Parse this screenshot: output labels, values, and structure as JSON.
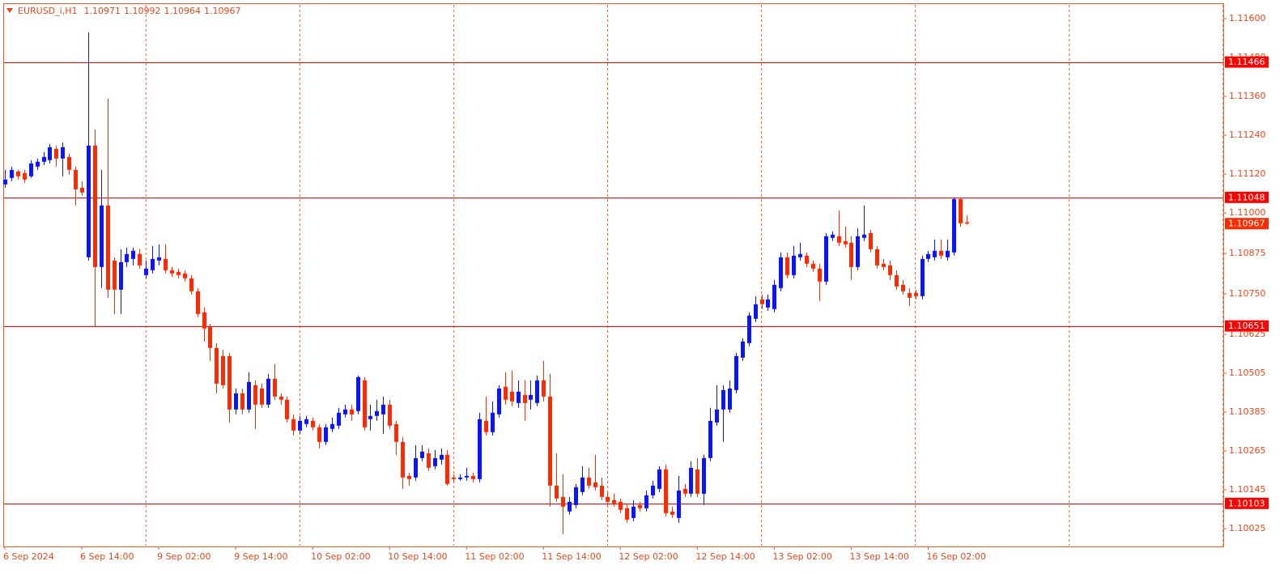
{
  "chart_data": {
    "type": "candlestick",
    "title": "EURUSD_i,H1",
    "categories": [
      "6 Sep 2024",
      null,
      null,
      null,
      null,
      null,
      null,
      null,
      null,
      null,
      null,
      null,
      "6 Sep 14:00",
      null,
      null,
      null,
      null,
      null,
      null,
      null,
      null,
      null,
      null,
      null,
      "9 Sep 02:00",
      null,
      null,
      null,
      null,
      null,
      null,
      null,
      null,
      null,
      null,
      null,
      "9 Sep 14:00",
      null,
      null,
      null,
      null,
      null,
      null,
      null,
      null,
      null,
      null,
      null,
      "10 Sep 02:00",
      null,
      null,
      null,
      null,
      null,
      null,
      null,
      null,
      null,
      null,
      null,
      "10 Sep 14:00",
      null,
      null,
      null,
      null,
      null,
      null,
      null,
      null,
      null,
      null,
      null,
      "11 Sep 02:00",
      null,
      null,
      null,
      null,
      null,
      null,
      null,
      null,
      null,
      null,
      null,
      "11 Sep 14:00",
      null,
      null,
      null,
      null,
      null,
      null,
      null,
      null,
      null,
      null,
      null,
      "12 Sep 02:00",
      null,
      null,
      null,
      null,
      null,
      null,
      null,
      null,
      null,
      null,
      null,
      "12 Sep 14:00",
      null,
      null,
      null,
      null,
      null,
      null,
      null,
      null,
      null,
      null,
      null,
      "13 Sep 02:00",
      null,
      null,
      null,
      null,
      null,
      null,
      null,
      null,
      null,
      null,
      null,
      "13 Sep 14:00",
      null,
      null,
      null,
      null,
      null,
      null,
      null,
      null,
      null,
      null,
      null,
      "16 Sep 02:00",
      null,
      null,
      null,
      null,
      null,
      null
    ],
    "open": [
      1.11088,
      1.11108,
      1.11128,
      1.11123,
      1.11113,
      1.11143,
      1.11158,
      1.11163,
      1.11198,
      1.11168,
      1.11173,
      1.11133,
      1.11078,
      1.10863,
      1.11208,
      1.10833,
      1.11023,
      1.10853,
      1.10763,
      1.10848,
      1.10858,
      1.10873,
      1.10808,
      1.10823,
      1.10853,
      1.10858,
      1.10823,
      1.10818,
      1.10813,
      1.10798,
      1.10758,
      1.10693,
      1.10648,
      1.10583,
      1.10558,
      1.10558,
      1.10393,
      1.10443,
      1.10393,
      1.10468,
      1.10458,
      1.10408,
      1.10488,
      1.10433,
      1.10423,
      1.10363,
      1.10328,
      1.10348,
      1.10358,
      1.10338,
      1.10293,
      1.10333,
      1.10343,
      1.10378,
      1.10393,
      1.10388,
      1.10483,
      1.10363,
      1.10373,
      1.10378,
      1.10408,
      1.10348,
      1.10293,
      1.10188,
      1.10183,
      1.10243,
      1.10258,
      1.10218,
      1.10238,
      1.10253,
      1.10183,
      1.10178,
      1.10183,
      1.10188,
      1.10178,
      1.10358,
      1.10323,
      1.10378,
      1.10463,
      1.10448,
      1.10413,
      1.10438,
      1.10423,
      1.10413,
      1.10483,
      1.10433,
      1.10158,
      1.10123,
      1.10078,
      1.10098,
      1.10138,
      1.10183,
      1.10168,
      1.10158,
      1.10123,
      1.10113,
      1.10108,
      1.10088,
      1.10058,
      1.10098,
      1.10088,
      1.10128,
      1.10148,
      1.10208,
      1.10078,
      1.10058,
      1.10148,
      1.10133,
      1.10208,
      1.10133,
      1.10243,
      1.10353,
      1.10393,
      1.10393,
      1.10453,
      1.10553,
      1.10598,
      1.10673,
      1.10733,
      1.10708,
      1.10703,
      1.10768,
      1.10863,
      1.10808,
      1.10863,
      1.10868,
      1.10843,
      1.10828,
      1.10788,
      1.10923,
      1.10928,
      1.10913,
      1.10908,
      1.10833,
      1.10923,
      1.10938,
      1.10888,
      1.10843,
      1.10838,
      1.10808,
      1.10778,
      1.10753,
      1.10753,
      1.10743,
      1.10858,
      1.10863,
      1.10883,
      1.10863,
      1.10878,
      1.11043,
      1.10971
    ],
    "high": [
      1.11133,
      1.11143,
      1.11133,
      1.11133,
      1.11163,
      1.11168,
      1.11188,
      1.11213,
      1.11208,
      1.11218,
      1.11183,
      1.11143,
      1.11098,
      1.11558,
      1.11258,
      1.11133,
      1.11353,
      1.10863,
      1.10888,
      1.10893,
      1.10893,
      1.10888,
      1.10853,
      1.10898,
      1.10903,
      1.10903,
      1.10833,
      1.10828,
      1.10823,
      1.10808,
      1.10768,
      1.10708,
      1.10658,
      1.10598,
      1.10578,
      1.10568,
      1.10458,
      1.10458,
      1.10508,
      1.10483,
      1.10473,
      1.10503,
      1.10533,
      1.10443,
      1.10433,
      1.10378,
      1.10373,
      1.10373,
      1.10368,
      1.10348,
      1.10348,
      1.10368,
      1.10398,
      1.10408,
      1.10408,
      1.10498,
      1.10493,
      1.10408,
      1.10423,
      1.10433,
      1.10423,
      1.10358,
      1.10308,
      1.10198,
      1.10283,
      1.10283,
      1.10273,
      1.10268,
      1.10273,
      1.10268,
      1.10193,
      1.10193,
      1.10213,
      1.10198,
      1.10383,
      1.10433,
      1.10418,
      1.10468,
      1.10508,
      1.10513,
      1.10483,
      1.10483,
      1.10483,
      1.10498,
      1.10543,
      1.10503,
      1.10258,
      1.10193,
      1.10123,
      1.10163,
      1.10218,
      1.10213,
      1.10253,
      1.10183,
      1.10138,
      1.10133,
      1.10118,
      1.10103,
      1.10113,
      1.10108,
      1.10143,
      1.10173,
      1.10218,
      1.10223,
      1.10093,
      1.10188,
      1.10163,
      1.10233,
      1.10243,
      1.10253,
      1.10398,
      1.10468,
      1.10468,
      1.10483,
      1.10568,
      1.10613,
      1.10693,
      1.10743,
      1.10748,
      1.10748,
      1.10793,
      1.10878,
      1.10878,
      1.10898,
      1.10908,
      1.10878,
      1.10853,
      1.10843,
      1.10938,
      1.10943,
      1.11008,
      1.10958,
      1.10928,
      1.10953,
      1.11023,
      1.10948,
      1.10898,
      1.10858,
      1.10853,
      1.10823,
      1.10793,
      1.10768,
      1.10763,
      1.10868,
      1.10883,
      1.10918,
      1.10918,
      1.10918,
      1.11048,
      1.11048,
      1.10992
    ],
    "low": [
      1.11078,
      1.11098,
      1.11103,
      1.11093,
      1.11108,
      1.11133,
      1.11148,
      1.11153,
      1.11143,
      1.11113,
      1.11118,
      1.11023,
      1.11053,
      1.10853,
      1.10648,
      1.10768,
      1.10738,
      1.10688,
      1.10688,
      1.10833,
      1.10838,
      1.10828,
      1.10798,
      1.10813,
      1.10838,
      1.10813,
      1.10803,
      1.10798,
      1.10788,
      1.10748,
      1.10678,
      1.10603,
      1.10543,
      1.10443,
      1.10458,
      1.10353,
      1.10378,
      1.10378,
      1.10383,
      1.10333,
      1.10398,
      1.10398,
      1.10423,
      1.10408,
      1.10353,
      1.10313,
      1.10318,
      1.10338,
      1.10328,
      1.10273,
      1.10283,
      1.10323,
      1.10333,
      1.10368,
      1.10358,
      1.10378,
      1.10328,
      1.10328,
      1.10358,
      1.10318,
      1.10333,
      1.10253,
      1.10148,
      1.10158,
      1.10173,
      1.10233,
      1.10203,
      1.10208,
      1.10223,
      1.10158,
      1.10168,
      1.10173,
      1.10173,
      1.10168,
      1.10168,
      1.10313,
      1.10313,
      1.10368,
      1.10408,
      1.10403,
      1.10398,
      1.10358,
      1.10393,
      1.10403,
      1.10418,
      1.10093,
      1.10108,
      1.10008,
      1.10068,
      1.10088,
      1.10128,
      1.10148,
      1.10143,
      1.10113,
      1.10098,
      1.10093,
      1.10073,
      1.10043,
      1.10048,
      1.10078,
      1.10078,
      1.10118,
      1.10138,
      1.10063,
      1.10058,
      1.10043,
      1.10123,
      1.10123,
      1.10123,
      1.10098,
      1.10233,
      1.10343,
      1.10293,
      1.10383,
      1.10443,
      1.10543,
      1.10588,
      1.10663,
      1.10703,
      1.10698,
      1.10693,
      1.10758,
      1.10798,
      1.10798,
      1.10853,
      1.10833,
      1.10818,
      1.10728,
      1.10778,
      1.10913,
      1.10898,
      1.10893,
      1.10793,
      1.10823,
      1.10913,
      1.10878,
      1.10828,
      1.10823,
      1.10793,
      1.10763,
      1.10748,
      1.10713,
      1.10733,
      1.10733,
      1.10848,
      1.10853,
      1.10858,
      1.10853,
      1.10868,
      1.10958,
      1.10964
    ],
    "close": [
      1.11103,
      1.11133,
      1.11113,
      1.11103,
      1.11153,
      1.11158,
      1.11173,
      1.11203,
      1.11168,
      1.11203,
      1.11133,
      1.11073,
      1.11063,
      1.11208,
      1.10833,
      1.11023,
      1.10763,
      1.10763,
      1.10848,
      1.10873,
      1.10883,
      1.10838,
      1.10828,
      1.10858,
      1.10863,
      1.10823,
      1.10813,
      1.10808,
      1.10798,
      1.10758,
      1.10688,
      1.10643,
      1.10583,
      1.10473,
      1.10468,
      1.10393,
      1.10443,
      1.10393,
      1.10478,
      1.10408,
      1.10408,
      1.10488,
      1.10433,
      1.10423,
      1.10363,
      1.10328,
      1.10358,
      1.10363,
      1.10338,
      1.10293,
      1.10338,
      1.10348,
      1.10383,
      1.10393,
      1.10378,
      1.10493,
      1.10338,
      1.10373,
      1.10388,
      1.10408,
      1.10343,
      1.10293,
      1.10183,
      1.10178,
      1.10243,
      1.10263,
      1.10213,
      1.10243,
      1.10253,
      1.10163,
      1.10178,
      1.10183,
      1.10188,
      1.10178,
      1.10363,
      1.10323,
      1.10383,
      1.10458,
      1.10423,
      1.10418,
      1.10448,
      1.10413,
      1.10438,
      1.10483,
      1.10433,
      1.10158,
      1.10118,
      1.10093,
      1.10108,
      1.10153,
      1.10183,
      1.10158,
      1.10153,
      1.10123,
      1.10108,
      1.10103,
      1.10083,
      1.10053,
      1.10093,
      1.10088,
      1.10128,
      1.10158,
      1.10208,
      1.10073,
      1.10068,
      1.10143,
      1.10133,
      1.10213,
      1.10133,
      1.10243,
      1.10358,
      1.10393,
      1.10453,
      1.10458,
      1.10558,
      1.10603,
      1.10683,
      1.10718,
      1.10718,
      1.10733,
      1.10778,
      1.10863,
      1.10808,
      1.10868,
      1.10873,
      1.10843,
      1.10828,
      1.10788,
      1.10928,
      1.10933,
      1.10908,
      1.10903,
      1.10833,
      1.10928,
      1.10933,
      1.10888,
      1.10838,
      1.10833,
      1.10808,
      1.10773,
      1.10758,
      1.10738,
      1.10743,
      1.10858,
      1.10873,
      1.10883,
      1.10868,
      1.10883,
      1.11043,
      1.10968,
      1.10967
    ],
    "up_color": "#0a14ff",
    "down_color": "#ff2a00",
    "ylim": [
      1.0997,
      1.11645
    ],
    "yticks": [
      {
        "value": 1.116,
        "label": "1.11600"
      },
      {
        "value": 1.1148,
        "label": "1.11480"
      },
      {
        "value": 1.1136,
        "label": "1.11360"
      },
      {
        "value": 1.1124,
        "label": "1.11240"
      },
      {
        "value": 1.1112,
        "label": "1.11120"
      },
      {
        "value": 1.11,
        "label": "1.11000"
      },
      1.10875,
      {
        "value": 1.1075,
        "label": "1.10750"
      },
      1.10625,
      1.10505,
      1.10385,
      1.10265,
      1.10145,
      1.10025
    ],
    "levels": [
      1.11466,
      1.11048,
      1.10651,
      1.10103
    ],
    "level_color": "#ff0000"
  }
}
